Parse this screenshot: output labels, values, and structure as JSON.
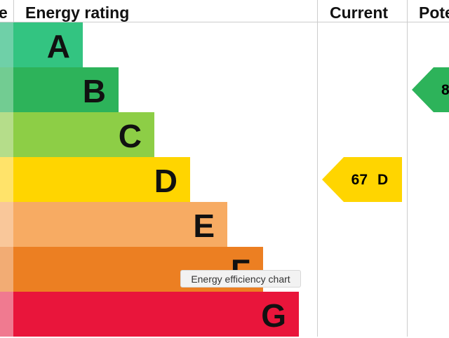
{
  "header": {
    "col0": "e",
    "rating": "Energy rating",
    "current": "Current",
    "potential": "Pote"
  },
  "bands": [
    {
      "letter": "A"
    },
    {
      "letter": "B"
    },
    {
      "letter": "C"
    },
    {
      "letter": "D"
    },
    {
      "letter": "E"
    },
    {
      "letter": "F"
    },
    {
      "letter": "G"
    }
  ],
  "current": {
    "score": "67",
    "letter": "D"
  },
  "potential": {
    "score": "8"
  },
  "tooltip": "Energy efficiency chart"
}
